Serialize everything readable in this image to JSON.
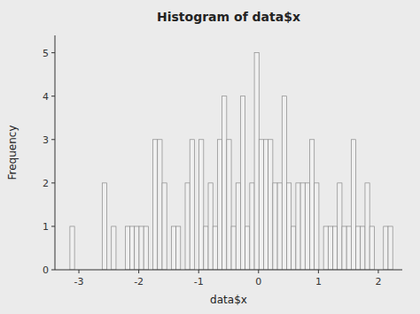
{
  "chart_data": {
    "type": "histogram",
    "title": "Histogram of data$x",
    "x_label": "data$x",
    "y_label": "Frequency",
    "values": [
      1,
      0,
      0,
      0,
      0,
      0,
      0,
      2,
      0,
      1,
      0,
      0,
      1,
      1,
      1,
      1,
      1,
      0,
      3,
      3,
      2,
      0,
      1,
      1,
      0,
      2,
      3,
      0,
      3,
      1,
      2,
      1,
      3,
      4,
      3,
      1,
      2,
      4,
      1,
      2,
      5,
      3,
      3,
      3,
      2,
      2,
      4,
      2,
      1,
      2,
      2,
      2,
      3,
      2,
      0,
      1,
      1,
      1,
      2,
      1,
      1,
      3,
      1,
      1,
      2,
      1,
      0,
      0,
      1,
      1
    ],
    "bins": [
      -3.15,
      -3.073,
      -2.996,
      -2.919,
      -2.842,
      -2.765,
      -2.688,
      -2.611,
      -2.534,
      -2.457,
      -2.38,
      -2.303,
      -2.226,
      -2.149,
      -2.072,
      -1.995,
      -1.918,
      -1.841,
      -1.764,
      -1.687,
      -1.61,
      -1.533,
      -1.456,
      -1.379,
      -1.302,
      -1.225,
      -1.148,
      -1.071,
      -0.994,
      -0.917,
      -0.84,
      -0.763,
      -0.686,
      -0.609,
      -0.532,
      -0.455,
      -0.378,
      -0.301,
      -0.224,
      -0.147,
      -0.07,
      0.007,
      0.084,
      0.161,
      0.238,
      0.315,
      0.392,
      0.469,
      0.546,
      0.623,
      0.7,
      0.777,
      0.854,
      0.931,
      1.008,
      1.085,
      1.162,
      1.239,
      1.316,
      1.393,
      1.47,
      1.547,
      1.624,
      1.701,
      1.778,
      1.855,
      1.932,
      2.009,
      2.086,
      2.163,
      2.24
    ],
    "color": "#f0f0f0",
    "xlim": [
      -3.4,
      2.4
    ],
    "ylim": [
      0,
      5.4
    ],
    "xticks": [
      -3,
      -2,
      -1,
      0,
      1,
      2
    ],
    "yticks": [
      0,
      1,
      2,
      3,
      4,
      5
    ],
    "grid": false
  }
}
